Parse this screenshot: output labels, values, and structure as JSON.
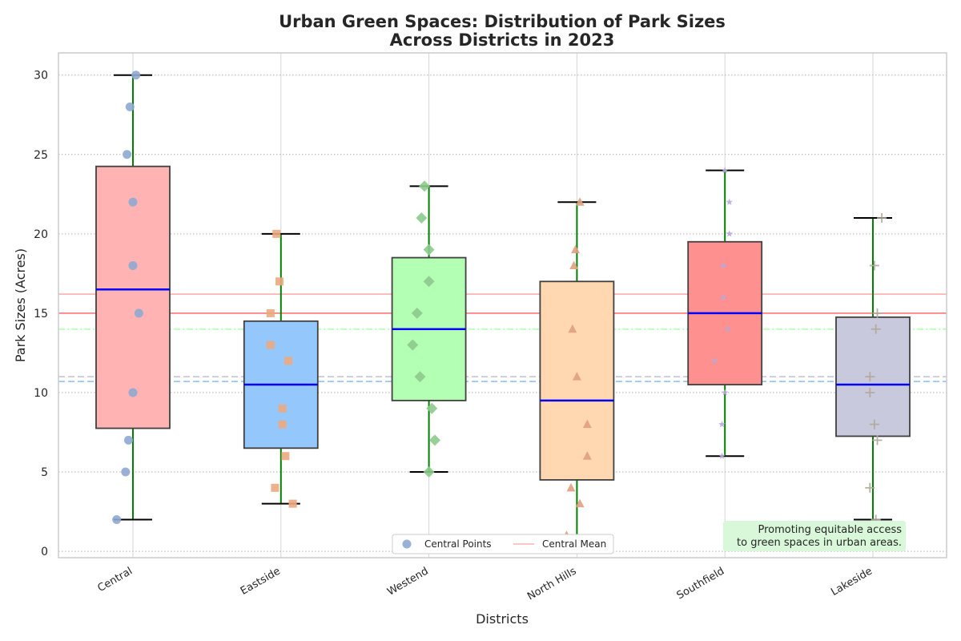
{
  "chart_data": {
    "type": "box",
    "title_lines": [
      "Urban Green Spaces: Distribution of Park Sizes",
      "Across Districts in 2023"
    ],
    "xlabel": "Districts",
    "ylabel": "Park Sizes (Acres)",
    "ylim": [
      -0.4,
      31.4
    ],
    "yticks": [
      "0",
      "5",
      "10",
      "15",
      "20",
      "25",
      "30"
    ],
    "grid": true,
    "categories": [
      "Central",
      "Eastside",
      "Westend",
      "North Hills",
      "Southfield",
      "Lakeside"
    ],
    "series": [
      {
        "category": "Central",
        "box_color": "#ffb3b3",
        "point_color": "#8fa9d2",
        "marker": "circle",
        "whisker_low": 2,
        "q1": 7.75,
        "median": 16.5,
        "q3": 24.25,
        "whisker_high": 30,
        "mean": 16.2,
        "points": [
          [
            -0.11,
            2
          ],
          [
            -0.05,
            5
          ],
          [
            -0.03,
            7
          ],
          [
            0,
            10
          ],
          [
            0.04,
            15
          ],
          [
            0,
            18
          ],
          [
            0,
            22
          ],
          [
            -0.04,
            25
          ],
          [
            -0.02,
            28
          ],
          [
            0.02,
            30
          ]
        ]
      },
      {
        "category": "Eastside",
        "box_color": "#94c8fc",
        "point_color": "#eba980",
        "marker": "square",
        "whisker_low": 3,
        "q1": 6.5,
        "median": 10.5,
        "q3": 14.5,
        "whisker_high": 20,
        "mean": 10.7,
        "points": [
          [
            0.08,
            3
          ],
          [
            -0.04,
            4
          ],
          [
            0.03,
            6
          ],
          [
            0.01,
            8
          ],
          [
            0.01,
            9
          ],
          [
            0.05,
            12
          ],
          [
            -0.07,
            13
          ],
          [
            -0.07,
            15
          ],
          [
            -0.01,
            17
          ],
          [
            -0.03,
            20
          ]
        ]
      },
      {
        "category": "Westend",
        "box_color": "#b3ffb3",
        "point_color": "#8cca8c",
        "marker": "diamond",
        "whisker_low": 5,
        "q1": 9.5,
        "median": 14,
        "q3": 18.5,
        "whisker_high": 23,
        "mean": 14.0,
        "points": [
          [
            0,
            5
          ],
          [
            0.04,
            7
          ],
          [
            0.02,
            9
          ],
          [
            -0.06,
            11
          ],
          [
            -0.11,
            13
          ],
          [
            -0.08,
            15
          ],
          [
            0,
            17
          ],
          [
            0,
            19
          ],
          [
            -0.05,
            21
          ],
          [
            -0.03,
            23
          ]
        ]
      },
      {
        "category": "North Hills",
        "box_color": "#ffd7b1",
        "point_color": "#e0a080",
        "marker": "triangle",
        "whisker_low": 1,
        "q1": 4.5,
        "median": 9.5,
        "q3": 17,
        "whisker_high": 22,
        "mean": 11.0,
        "points": [
          [
            -0.07,
            1
          ],
          [
            0.02,
            3
          ],
          [
            -0.04,
            4
          ],
          [
            0.07,
            6
          ],
          [
            0.07,
            8
          ],
          [
            0,
            11
          ],
          [
            -0.03,
            14
          ],
          [
            -0.02,
            18
          ],
          [
            -0.01,
            19
          ],
          [
            0.02,
            22
          ]
        ]
      },
      {
        "category": "Southfield",
        "box_color": "#ff9090",
        "point_color": "#b8a9d9",
        "marker": "star",
        "whisker_low": 6,
        "q1": 10.5,
        "median": 15,
        "q3": 19.5,
        "whisker_high": 24,
        "mean": 15.0,
        "points": [
          [
            -0.02,
            6
          ],
          [
            -0.02,
            8
          ],
          [
            0,
            10
          ],
          [
            -0.07,
            12
          ],
          [
            0.02,
            14
          ],
          [
            -0.01,
            16
          ],
          [
            -0.01,
            18
          ],
          [
            0.03,
            20
          ],
          [
            0.03,
            22
          ],
          [
            0,
            24
          ]
        ]
      },
      {
        "category": "Lakeside",
        "box_color": "#c9c9dd",
        "point_color": "#b0a898",
        "marker": "plus",
        "whisker_low": 2,
        "q1": 7.25,
        "median": 10.5,
        "q3": 14.75,
        "whisker_high": 21,
        "mean": 11.0,
        "points": [
          [
            0.02,
            2
          ],
          [
            -0.02,
            4
          ],
          [
            0.03,
            7
          ],
          [
            0.01,
            8
          ],
          [
            -0.02,
            10
          ],
          [
            -0.02,
            11
          ],
          [
            0.02,
            14
          ],
          [
            0.03,
            15
          ],
          [
            0.01,
            18
          ],
          [
            0.06,
            21
          ]
        ]
      }
    ],
    "mean_lines": [
      {
        "value": 16.2,
        "color": "#ffb3b3",
        "dash": "solid"
      },
      {
        "value": 15.0,
        "color": "#ff8080",
        "dash": "solid"
      },
      {
        "value": 14.0,
        "color": "#b3ffb3",
        "dash": "dashdot"
      },
      {
        "value": 11.0,
        "color": "#c9c9dd",
        "dash": "dashed"
      },
      {
        "value": 10.7,
        "color": "#94c8fc",
        "dash": "dashed"
      }
    ],
    "legend": {
      "placement": "bottom-center",
      "entries": [
        {
          "label": "Central Points",
          "kind": "marker",
          "color": "#8fa9d2"
        },
        {
          "label": "Central Mean",
          "kind": "line",
          "color": "#ffb3b3"
        }
      ]
    },
    "annotation": {
      "lines": [
        "Promoting equitable access",
        "to green spaces in urban areas."
      ],
      "placement": "bottom-right",
      "background": "#d9f7d9"
    },
    "colors": {
      "median": "#0000ff",
      "whisker": "#008000",
      "cap": "#000000",
      "box_edge": "#404040",
      "grid_y": "#b0b0b0",
      "grid_x": "#d6d6d6",
      "frame": "#cccccc"
    }
  }
}
